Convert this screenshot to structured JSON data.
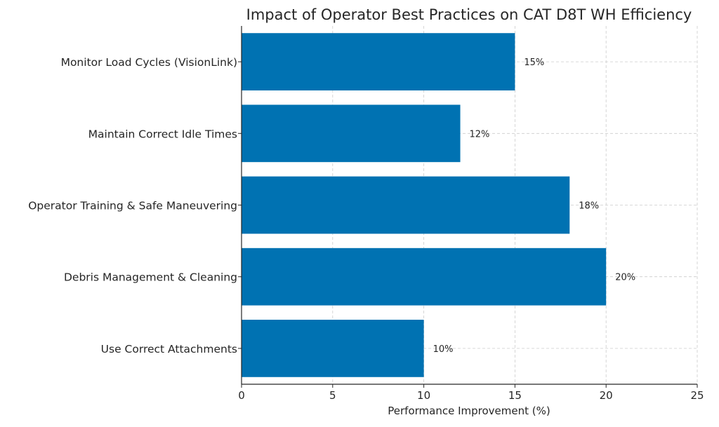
{
  "chart_data": {
    "type": "bar",
    "orientation": "horizontal",
    "title": "Impact of Operator Best Practices on CAT D8T WH Efficiency",
    "xlabel": "Performance Improvement (%)",
    "ylabel": "",
    "categories": [
      "Monitor Load Cycles (VisionLink)",
      "Maintain Correct Idle Times",
      "Operator Training & Safe Maneuvering",
      "Debris Management & Cleaning",
      "Use Correct Attachments"
    ],
    "values": [
      15,
      12,
      18,
      20,
      10
    ],
    "data_labels": [
      "15%",
      "12%",
      "18%",
      "20%",
      "10%"
    ],
    "xlim": [
      0,
      25
    ],
    "xticks": [
      0,
      5,
      10,
      15,
      20,
      25
    ],
    "xtick_labels": [
      "0",
      "5",
      "10",
      "15",
      "20",
      "25"
    ],
    "grid": true,
    "bar_color": "#0072B2"
  }
}
